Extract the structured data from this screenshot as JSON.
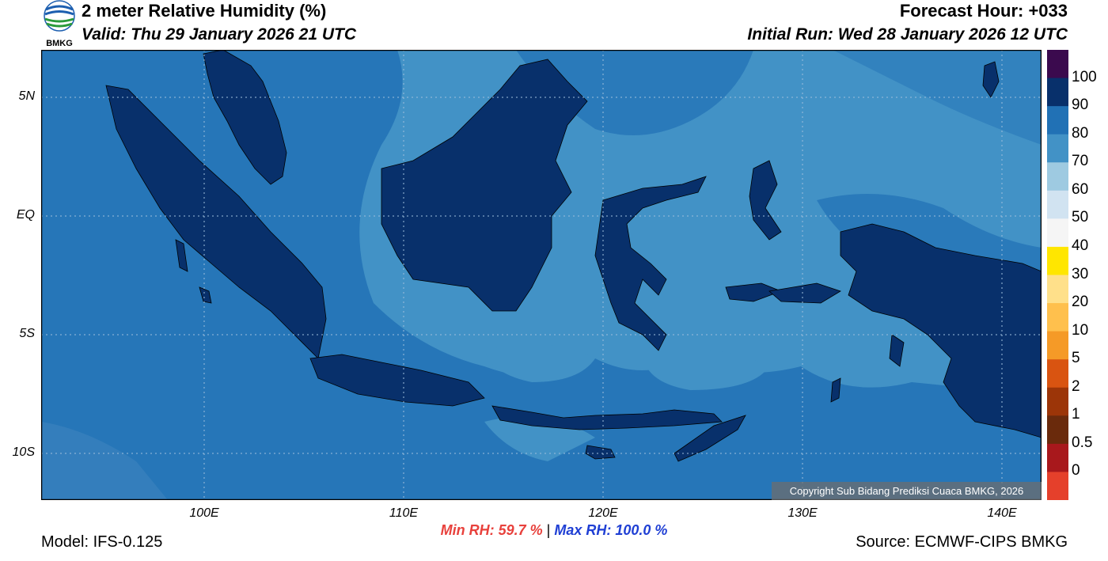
{
  "header": {
    "title": "2 meter Relative Humidity (%)",
    "valid": "Valid: Thu 29 January 2026 21 UTC",
    "forecast_hour": "Forecast Hour: +033",
    "initial_run": "Initial Run: Wed 28 January 2026 12 UTC"
  },
  "logo": {
    "text": "BMKG"
  },
  "map": {
    "lat_labels": [
      "5N",
      "EQ",
      "5S",
      "10S"
    ],
    "lon_labels": [
      "100E",
      "110E",
      "120E",
      "130E",
      "140E"
    ],
    "copyright": "Copyright Sub Bidang Prediksi Cuaca BMKG, 2026",
    "ocean_color": "#4292c6",
    "land_color": "#08306b"
  },
  "colorbar": {
    "labels": [
      "100",
      "90",
      "80",
      "70",
      "60",
      "50",
      "40",
      "30",
      "20",
      "10",
      "5",
      "2",
      "1",
      "0.5",
      "0"
    ],
    "colors": [
      "#3b0a4e",
      "#08306b",
      "#2171b5",
      "#4292c6",
      "#9ecae1",
      "#d1e3f1",
      "#f5f5f5",
      "#ffe600",
      "#ffe08a",
      "#ffc04d",
      "#f59a27",
      "#d95411",
      "#9c3508",
      "#6a2a0c",
      "#a8181c",
      "#e5402b"
    ]
  },
  "stats": {
    "min_rh": "Min RH:  59.7 %",
    "separator": "|",
    "max_rh": "Max RH: 100.0 %"
  },
  "footer": {
    "model": "Model: IFS-0.125",
    "source": "Source: ECMWF-CIPS BMKG"
  }
}
